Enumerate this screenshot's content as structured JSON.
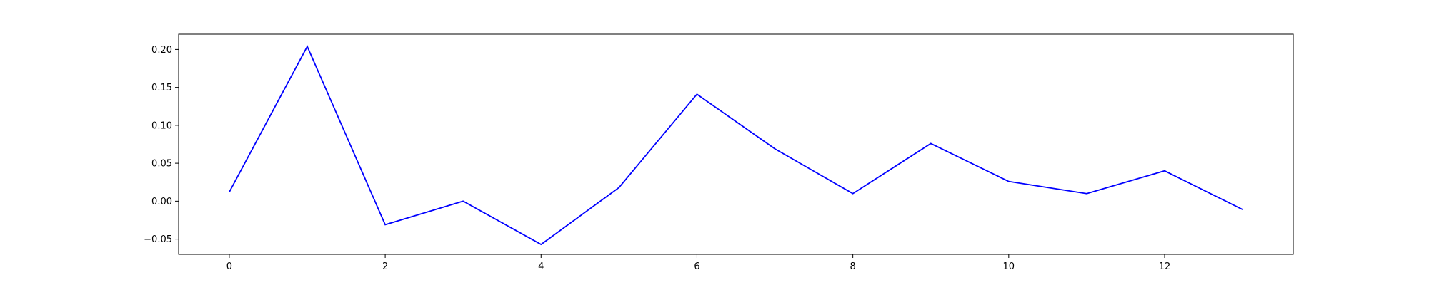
{
  "chart_data": {
    "type": "line",
    "title": "",
    "xlabel": "",
    "ylabel": "",
    "x": [
      0,
      1,
      2,
      3,
      4,
      5,
      6,
      7,
      8,
      9,
      10,
      11,
      12,
      13
    ],
    "series": [
      {
        "color": "#0000ff",
        "values": [
          0.012,
          0.204,
          -0.031,
          0.0,
          -0.057,
          0.018,
          0.141,
          0.069,
          0.01,
          0.076,
          0.026,
          0.01,
          0.04,
          -0.011
        ]
      }
    ],
    "xlim": [
      -0.65,
      13.65
    ],
    "ylim": [
      -0.0701,
      0.2201
    ],
    "xticks": [
      0,
      2,
      4,
      6,
      8,
      10,
      12
    ],
    "xtick_labels": [
      "0",
      "2",
      "4",
      "6",
      "8",
      "10",
      "12"
    ],
    "yticks": [
      -0.05,
      0.0,
      0.05,
      0.1,
      0.15,
      0.2
    ],
    "ytick_labels": [
      "−0.05",
      "0.00",
      "0.05",
      "0.10",
      "0.15",
      "0.20"
    ],
    "grid": false,
    "legend": "none"
  }
}
